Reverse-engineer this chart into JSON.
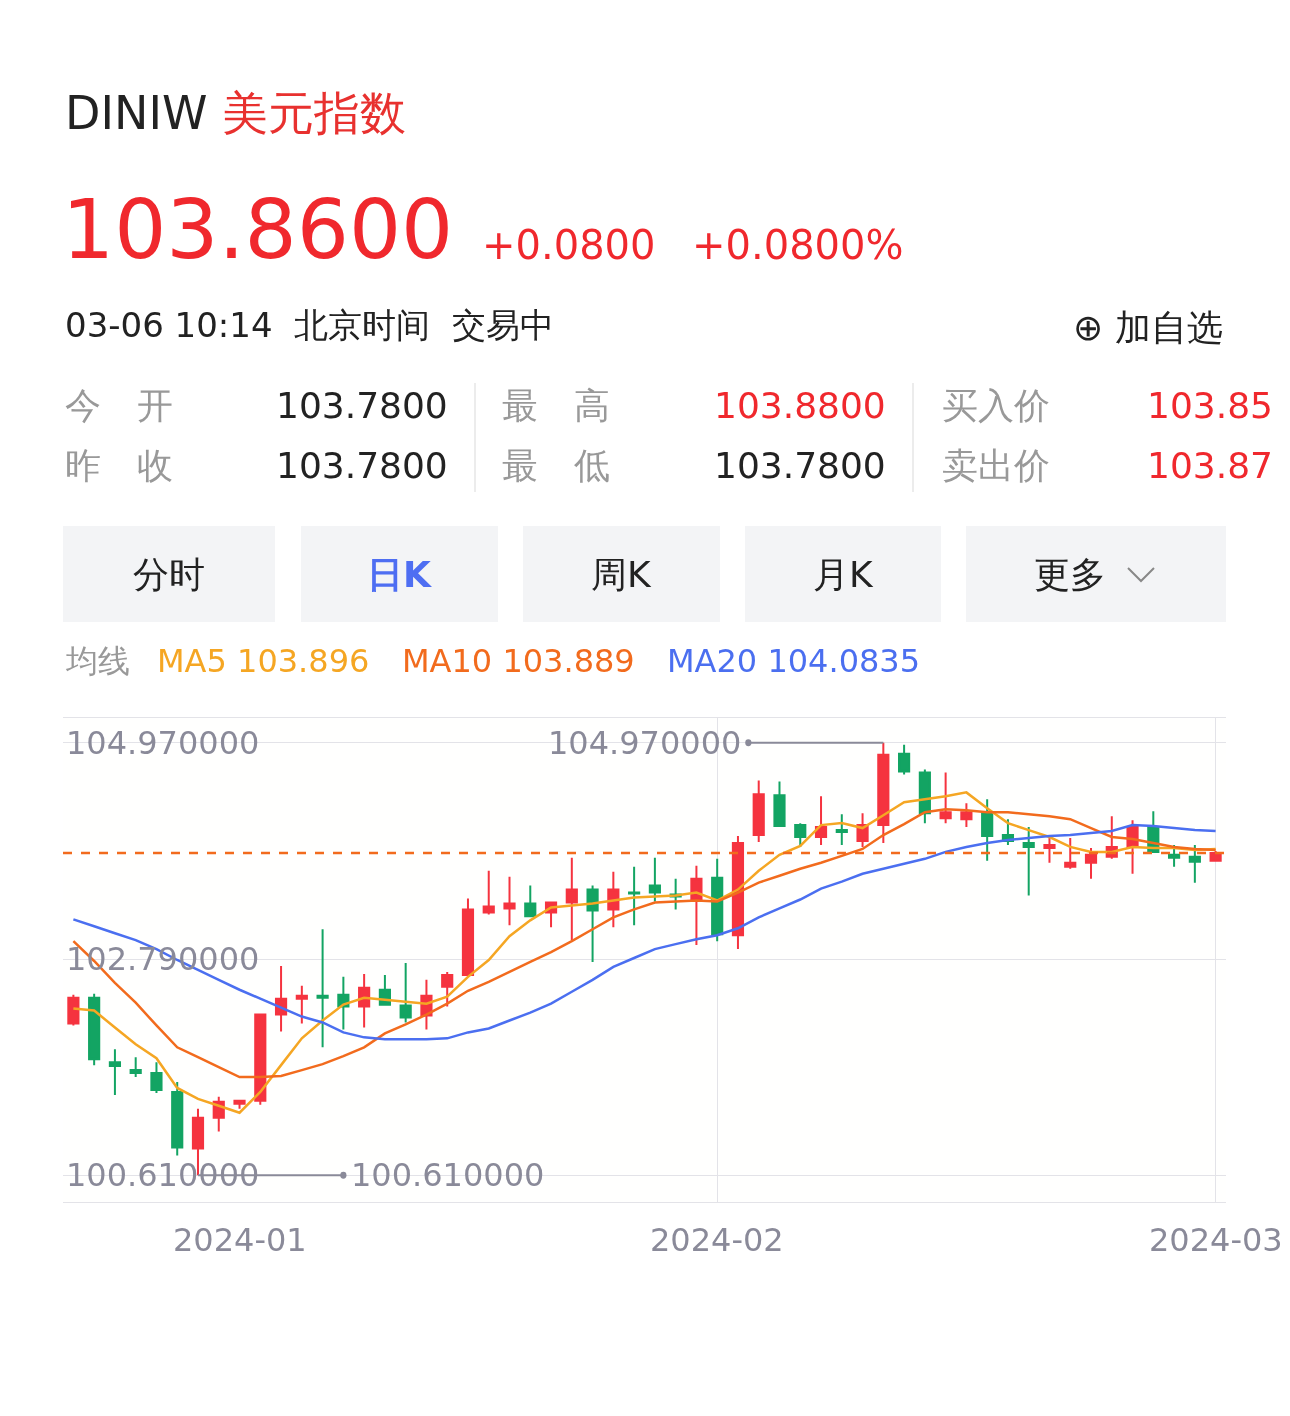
{
  "chart_data": {
    "type": "candlestick",
    "title": "DINIW 美元指数",
    "categories": [
      null,
      null,
      null,
      null,
      null,
      null,
      null,
      null,
      "2024-01",
      null,
      null,
      null,
      null,
      null,
      null,
      null,
      null,
      null,
      null,
      null,
      null,
      null,
      null,
      null,
      null,
      null,
      null,
      null,
      null,
      null,
      null,
      "2024-02",
      null,
      null,
      null,
      null,
      null,
      null,
      null,
      null,
      null,
      null,
      null,
      null,
      null,
      null,
      null,
      null,
      null,
      null,
      null,
      null,
      null,
      null,
      null,
      "2024-03"
    ],
    "series": [
      {
        "name": "MA5 103.896",
        "type": "line",
        "color": "#f5a623",
        "values": [
          102.29,
          102.27,
          102.1,
          101.93,
          101.79,
          101.49,
          101.38,
          101.31,
          101.24,
          101.45,
          101.72,
          101.99,
          102.17,
          102.33,
          102.4,
          102.38,
          102.36,
          102.34,
          102.41,
          102.61,
          102.78,
          103.02,
          103.18,
          103.31,
          103.33,
          103.35,
          103.38,
          103.41,
          103.42,
          103.43,
          103.46,
          103.38,
          103.49,
          103.68,
          103.84,
          103.93,
          104.14,
          104.16,
          104.11,
          104.24,
          104.37,
          104.4,
          104.43,
          104.47,
          104.31,
          104.16,
          104.09,
          104.02,
          103.92,
          103.87,
          103.87,
          103.92,
          103.91,
          103.91,
          103.89,
          103.9
        ]
      },
      {
        "name": "MA10 103.889",
        "type": "line",
        "color": "#f26b1d",
        "values": [
          102.97,
          102.77,
          102.55,
          102.35,
          102.12,
          101.9,
          101.8,
          101.7,
          101.6,
          101.6,
          101.61,
          101.67,
          101.73,
          101.81,
          101.9,
          102.04,
          102.13,
          102.23,
          102.34,
          102.47,
          102.56,
          102.66,
          102.76,
          102.86,
          102.97,
          103.09,
          103.21,
          103.29,
          103.36,
          103.37,
          103.38,
          103.37,
          103.46,
          103.56,
          103.63,
          103.7,
          103.76,
          103.83,
          103.9,
          104.04,
          104.15,
          104.27,
          104.3,
          104.29,
          104.27,
          104.27,
          104.25,
          104.23,
          104.2,
          104.11,
          104.02,
          104.0,
          103.96,
          103.92,
          103.9,
          103.89
        ]
      },
      {
        "name": "MA20 104.0835",
        "type": "line",
        "color": "#4b6ff0",
        "values": [
          103.19,
          103.12,
          103.05,
          102.98,
          102.89,
          102.78,
          102.68,
          102.58,
          102.48,
          102.39,
          102.3,
          102.21,
          102.15,
          102.05,
          102.0,
          101.98,
          101.98,
          101.98,
          101.99,
          102.05,
          102.09,
          102.17,
          102.25,
          102.34,
          102.46,
          102.58,
          102.71,
          102.8,
          102.89,
          102.94,
          102.99,
          103.03,
          103.1,
          103.21,
          103.3,
          103.39,
          103.5,
          103.57,
          103.65,
          103.7,
          103.75,
          103.8,
          103.87,
          103.92,
          103.96,
          103.99,
          104.01,
          104.03,
          104.04,
          104.06,
          104.08,
          104.14,
          104.13,
          104.11,
          104.09,
          104.08
        ]
      },
      {
        "colors": [
          "#f5333f",
          "#13a463",
          "#13a463",
          "#13a463",
          "#13a463",
          "#13a463",
          "#f5333f",
          "#f5333f",
          "#f5333f",
          "#f5333f",
          "#f5333f",
          "#f5333f",
          "#13a463",
          "#13a463",
          "#f5333f",
          "#13a463",
          "#13a463",
          "#f5333f",
          "#f5333f",
          "#f5333f",
          "#f5333f",
          "#f5333f",
          "#13a463",
          "#f5333f",
          "#f5333f",
          "#13a463",
          "#f5333f",
          "#13a463",
          "#13a463",
          "#13a463",
          "#f5333f",
          "#13a463",
          "#f5333f",
          "#f5333f",
          "#13a463",
          "#13a463",
          "#f5333f",
          "#13a463",
          "#f5333f",
          "#f5333f",
          "#13a463",
          "#13a463",
          "#f5333f",
          "#f5333f",
          "#13a463",
          "#13a463",
          "#13a463",
          "#f5333f",
          "#f5333f",
          "#f5333f",
          "#f5333f",
          "#f5333f",
          "#13a463",
          "#13a463",
          "#13a463",
          "#f5333f"
        ],
        "ohlc": [
          [
            102.14,
            102.43,
            102.12,
            102.4
          ],
          [
            102.4,
            102.44,
            101.72,
            101.78
          ],
          [
            101.75,
            101.88,
            101.42,
            101.71
          ],
          [
            101.67,
            101.8,
            101.6,
            101.64
          ],
          [
            101.64,
            101.75,
            101.44,
            101.47
          ],
          [
            101.45,
            101.55,
            100.81,
            100.89
          ],
          [
            100.88,
            101.28,
            100.61,
            101.19
          ],
          [
            101.19,
            101.4,
            101.05,
            101.35
          ],
          [
            101.33,
            101.36,
            101.28,
            101.36
          ],
          [
            101.36,
            102.24,
            101.32,
            102.23
          ],
          [
            102.23,
            102.72,
            102.06,
            102.39
          ],
          [
            102.39,
            102.52,
            102.14,
            102.42
          ],
          [
            102.42,
            103.09,
            101.9,
            102.4
          ],
          [
            102.43,
            102.61,
            102.08,
            102.31
          ],
          [
            102.31,
            102.64,
            102.1,
            102.5
          ],
          [
            102.48,
            102.63,
            102.33,
            102.33
          ],
          [
            102.32,
            102.75,
            102.15,
            102.2
          ],
          [
            102.22,
            102.58,
            102.08,
            102.42
          ],
          [
            102.51,
            102.66,
            102.31,
            102.63
          ],
          [
            102.63,
            103.4,
            102.61,
            103.29
          ],
          [
            103.26,
            103.68,
            103.24,
            103.32
          ],
          [
            103.3,
            103.62,
            103.13,
            103.35
          ],
          [
            103.35,
            103.53,
            103.22,
            103.22
          ],
          [
            103.26,
            103.37,
            103.11,
            103.36
          ],
          [
            103.36,
            103.81,
            102.98,
            103.49
          ],
          [
            103.49,
            103.53,
            102.76,
            103.28
          ],
          [
            103.29,
            103.67,
            103.11,
            103.49
          ],
          [
            103.46,
            103.72,
            103.13,
            103.45
          ],
          [
            103.53,
            103.81,
            103.37,
            103.46
          ],
          [
            103.44,
            103.6,
            103.29,
            103.42
          ],
          [
            103.38,
            103.73,
            102.93,
            103.6
          ],
          [
            103.61,
            103.8,
            102.97,
            103.04
          ],
          [
            103.03,
            104.03,
            102.89,
            103.96
          ],
          [
            104.04,
            104.59,
            103.97,
            104.45
          ],
          [
            104.44,
            104.58,
            104.12,
            104.13
          ],
          [
            104.14,
            104.16,
            103.92,
            104.02
          ],
          [
            104.02,
            104.43,
            103.94,
            104.12
          ],
          [
            104.09,
            104.25,
            103.94,
            104.07
          ],
          [
            103.98,
            104.26,
            103.92,
            104.14
          ],
          [
            104.14,
            104.97,
            103.96,
            104.85
          ],
          [
            104.86,
            104.95,
            104.65,
            104.68
          ],
          [
            104.67,
            104.7,
            104.16,
            104.26
          ],
          [
            104.21,
            104.67,
            104.16,
            104.27
          ],
          [
            104.2,
            104.36,
            104.12,
            104.27
          ],
          [
            104.27,
            104.4,
            103.78,
            104.03
          ],
          [
            104.04,
            104.2,
            103.94,
            103.98
          ],
          [
            103.96,
            104.12,
            103.43,
            103.92
          ],
          [
            103.91,
            104.04,
            103.76,
            103.94
          ],
          [
            103.72,
            104.01,
            103.7,
            103.76
          ],
          [
            103.76,
            103.91,
            103.6,
            103.84
          ],
          [
            103.82,
            104.23,
            103.8,
            103.92
          ],
          [
            103.92,
            104.19,
            103.65,
            104.12
          ],
          [
            104.12,
            104.28,
            103.86,
            103.87
          ],
          [
            103.84,
            103.94,
            103.72,
            103.81
          ],
          [
            103.82,
            103.94,
            103.56,
            103.77
          ],
          [
            103.78,
            103.88,
            103.78,
            103.86
          ]
        ]
      }
    ],
    "ylim": [
      100.34,
      105.22
    ],
    "yticks": [
      {
        "value": 104.97,
        "label": "104.970000"
      },
      {
        "value": 102.79,
        "label": "102.790000"
      },
      {
        "value": 100.61,
        "label": "100.610000"
      }
    ],
    "grid": true,
    "legend": "top left",
    "legend_title": "均线",
    "line_style": "solid",
    "ref_lines": [
      {
        "axis": "y",
        "value": 103.86,
        "color": "#f26b1d",
        "line_style": "dashed"
      }
    ],
    "annotations": [
      "103.8600",
      "+0.0800",
      "+0.0800%",
      "03-06 10:14  北京时间  交易中",
      "⊕ 加自选",
      "今　开",
      "103.7800",
      "最　高",
      "103.8800",
      "买入价",
      "103.85",
      "昨　收",
      "103.7800",
      "最　低",
      "103.7800",
      "卖出价",
      "103.87",
      "分时",
      "日K",
      "周K",
      "月K",
      "更多",
      "104.970000",
      "100.610000"
    ]
  }
}
